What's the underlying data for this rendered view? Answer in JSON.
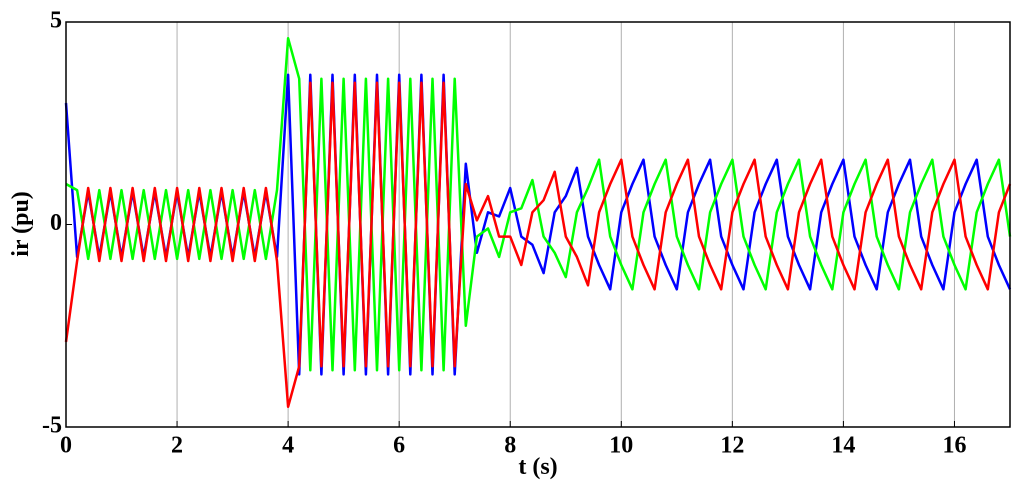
{
  "chart_data": {
    "type": "line",
    "xlabel": "t (s)",
    "ylabel": "ir (pu)",
    "xlim": [
      0,
      17
    ],
    "ylim": [
      -5,
      5
    ],
    "xticks": [
      0,
      2,
      4,
      6,
      8,
      10,
      12,
      14,
      16
    ],
    "yticks": [
      -5,
      0,
      5
    ],
    "grid": "x",
    "x": [
      0,
      0.2,
      0.4,
      0.6,
      0.8,
      1,
      1.2,
      1.4,
      1.6,
      1.8,
      2,
      2.2,
      2.4,
      2.6,
      2.8,
      3,
      3.2,
      3.4,
      3.6,
      3.8,
      4,
      4.2,
      4.4,
      4.6,
      4.8,
      5,
      5.2,
      5.4,
      5.6,
      5.8,
      6,
      6.2,
      6.4,
      6.6,
      6.8,
      7,
      7.2,
      7.4,
      7.6,
      7.8,
      8,
      8.2,
      8.4,
      8.6,
      8.8,
      9,
      9.2,
      9.4,
      9.6,
      9.8,
      10,
      10.2,
      10.4,
      10.6,
      10.8,
      11,
      11.2,
      11.4,
      11.6,
      11.8,
      12,
      12.2,
      12.4,
      12.6,
      12.8,
      13,
      13.2,
      13.4,
      13.6,
      13.8,
      14,
      14.2,
      14.4,
      14.6,
      14.8,
      15,
      15.2,
      15.4,
      15.6,
      15.8,
      16,
      16.2,
      16.4,
      16.6,
      16.8,
      17
    ],
    "series": [
      {
        "color": "#0000ff",
        "values": [
          3.0,
          -0.8,
          0.8,
          -0.8,
          0.8,
          -0.8,
          0.8,
          -0.8,
          0.8,
          -0.8,
          0.8,
          -0.8,
          0.8,
          -0.8,
          0.8,
          -0.8,
          0.8,
          -0.8,
          0.8,
          -0.8,
          3.7,
          -3.7,
          3.7,
          -3.7,
          3.7,
          -3.7,
          3.7,
          -3.7,
          3.7,
          -3.7,
          3.7,
          -3.7,
          3.7,
          -3.7,
          3.7,
          -3.7,
          1.5,
          -0.7,
          0.3,
          0.2,
          0.9,
          -0.3,
          -0.5,
          -1.2,
          0.3,
          0.7,
          1.4,
          -0.3,
          -1.0,
          -1.6,
          0.3,
          1.0,
          1.6,
          -0.3,
          -1.0,
          -1.6,
          0.3,
          1.0,
          1.6,
          -0.3,
          -1.0,
          -1.6,
          0.3,
          1.0,
          1.6,
          -0.3,
          -1.0,
          -1.6,
          0.3,
          1.0,
          1.6,
          -0.3,
          -1.0,
          -1.6,
          0.3,
          1.0,
          1.6,
          -0.3,
          -1.0,
          -1.6,
          0.3,
          1.0,
          1.6,
          -0.3,
          -1.0,
          -1.6
        ]
      },
      {
        "color": "#00ff00",
        "values": [
          1.0,
          0.85,
          -0.85,
          0.85,
          -0.85,
          0.85,
          -0.85,
          0.85,
          -0.85,
          0.85,
          -0.85,
          0.85,
          -0.85,
          0.85,
          -0.85,
          0.85,
          -0.85,
          0.85,
          -0.85,
          0.85,
          4.6,
          3.6,
          -3.6,
          3.6,
          -3.6,
          3.6,
          -3.6,
          3.6,
          -3.6,
          3.6,
          -3.6,
          3.6,
          -3.6,
          3.6,
          -3.6,
          3.6,
          -2.5,
          -0.3,
          -0.1,
          -0.8,
          0.3,
          0.4,
          1.1,
          -0.3,
          -0.7,
          -1.3,
          0.3,
          0.9,
          1.6,
          -0.3,
          -1.0,
          -1.6,
          0.3,
          1.0,
          1.6,
          -0.3,
          -1.0,
          -1.6,
          0.3,
          1.0,
          1.6,
          -0.3,
          -1.0,
          -1.6,
          0.3,
          1.0,
          1.6,
          -0.3,
          -1.0,
          -1.6,
          0.3,
          1.0,
          1.6,
          -0.3,
          -1.0,
          -1.6,
          0.3,
          1.0,
          1.6,
          -0.3,
          -1.0,
          -1.6,
          0.3,
          1.0,
          1.6,
          -0.3
        ]
      },
      {
        "color": "#ff0000",
        "values": [
          -2.9,
          -0.9,
          0.9,
          -0.9,
          0.9,
          -0.9,
          0.9,
          -0.9,
          0.9,
          -0.9,
          0.9,
          -0.9,
          0.9,
          -0.9,
          0.9,
          -0.9,
          0.9,
          -0.9,
          0.9,
          -0.9,
          -4.5,
          -3.5,
          3.5,
          -3.5,
          3.5,
          -3.5,
          3.5,
          -3.5,
          3.5,
          -3.5,
          3.5,
          -3.5,
          3.5,
          -3.5,
          3.5,
          -3.5,
          1.0,
          0.1,
          0.7,
          -0.3,
          -0.3,
          -1.0,
          0.3,
          0.6,
          1.3,
          -0.3,
          -0.8,
          -1.5,
          0.3,
          1.0,
          1.6,
          -0.3,
          -1.0,
          -1.6,
          0.3,
          1.0,
          1.6,
          -0.3,
          -1.0,
          -1.6,
          0.3,
          1.0,
          1.6,
          -0.3,
          -1.0,
          -1.6,
          0.3,
          1.0,
          1.6,
          -0.3,
          -1.0,
          -1.6,
          0.3,
          1.0,
          1.6,
          -0.3,
          -1.0,
          -1.6,
          0.3,
          1.0,
          1.6,
          -0.3,
          -1.0,
          -1.6,
          0.3,
          1.0
        ]
      }
    ]
  }
}
